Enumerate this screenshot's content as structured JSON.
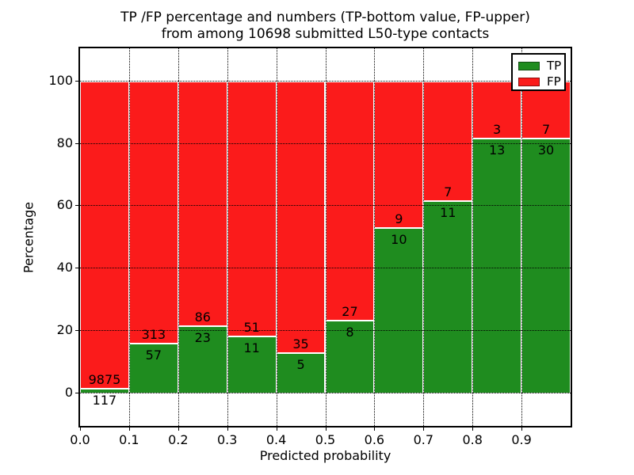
{
  "title": {
    "line1": "TP /FP percentage and numbers (TP-bottom value, FP-upper)",
    "line2": "from among 10698 submitted L50-type contacts"
  },
  "axes": {
    "xlabel": "Predicted probability",
    "ylabel": "Percentage",
    "xtick_labels": [
      "0.0",
      "0.1",
      "0.2",
      "0.3",
      "0.4",
      "0.5",
      "0.6",
      "0.7",
      "0.8",
      "0.9"
    ],
    "ytick_labels": [
      "0",
      "20",
      "40",
      "60",
      "80",
      "100"
    ]
  },
  "legend": {
    "entries": [
      {
        "label": "TP",
        "color": "#1f8c1f"
      },
      {
        "label": "FP",
        "color": "#fb1b1b"
      }
    ]
  },
  "colors": {
    "tp_green": "#1f8c1f",
    "fp_red": "#fb1b1b",
    "bar_edge": "#ffffff",
    "grid": "#000000",
    "frame": "#000000",
    "background": "#ffffff"
  },
  "chart_data": {
    "type": "bar",
    "stacked": true,
    "normalized": "each bin scaled to 100%",
    "title": "TP /FP percentage and numbers (TP-bottom value, FP-upper) from among 10698 submitted L50-type contacts",
    "xlabel": "Predicted probability",
    "ylabel": "Percentage",
    "total_contacts": 10698,
    "bin_width": 0.1,
    "bin_starts": [
      0.0,
      0.1,
      0.2,
      0.3,
      0.4,
      0.5,
      0.6,
      0.7,
      0.8,
      0.9
    ],
    "series": [
      {
        "name": "TP",
        "color": "#1f8c1f",
        "counts": [
          117,
          57,
          23,
          11,
          5,
          8,
          10,
          11,
          13,
          30
        ]
      },
      {
        "name": "FP",
        "color": "#fb1b1b",
        "counts": [
          9875,
          313,
          86,
          51,
          35,
          27,
          9,
          7,
          3,
          7
        ]
      }
    ],
    "tp_percent_of_bin": [
      1.17,
      15.41,
      21.1,
      17.74,
      12.5,
      22.86,
      52.63,
      61.11,
      81.25,
      81.08
    ],
    "xlim": [
      0.0,
      1.0
    ],
    "ylim": [
      -10.6,
      110.3
    ],
    "xticks": [
      0.0,
      0.1,
      0.2,
      0.3,
      0.4,
      0.5,
      0.6,
      0.7,
      0.8,
      0.9
    ],
    "yticks": [
      0,
      20,
      40,
      60,
      80,
      100
    ],
    "grid": "dotted, both axes",
    "legend_position": "upper right"
  }
}
